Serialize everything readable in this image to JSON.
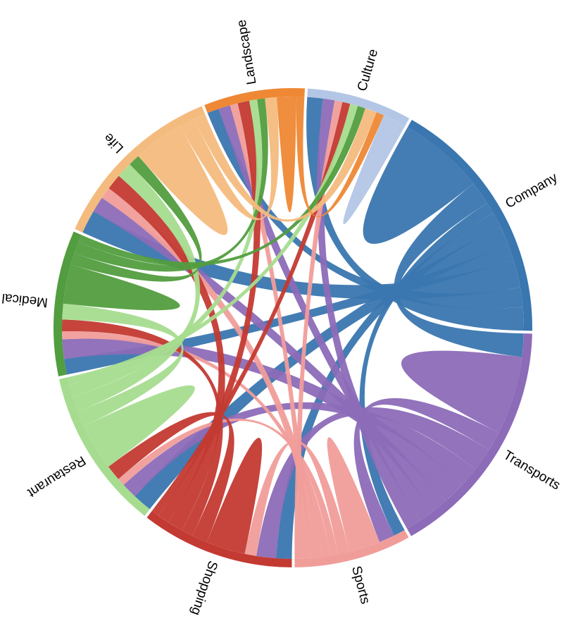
{
  "chart_data": {
    "type": "chord",
    "groups": [
      "Company",
      "Transports",
      "Sports",
      "Shopping",
      "Restaurant",
      "Medical",
      "Life",
      "Landscape",
      "Culture"
    ],
    "colors": [
      "#3a76af",
      "#8c6bb8",
      "#f09d9a",
      "#c33a32",
      "#a6dc8f",
      "#529d3f",
      "#f4bb7e",
      "#ee8834",
      "#b3c6e5"
    ],
    "matrix": [
      [
        22,
        6,
        3,
        4,
        5,
        4,
        7,
        5,
        6
      ],
      [
        6,
        20,
        5,
        6,
        5,
        6,
        4,
        4,
        4
      ],
      [
        3,
        4,
        8,
        3,
        2,
        2,
        3,
        2,
        2
      ],
      [
        4,
        5,
        3,
        10,
        4,
        3,
        4,
        3,
        2
      ],
      [
        5,
        4,
        2,
        4,
        12,
        4,
        4,
        3,
        2
      ],
      [
        4,
        5,
        2,
        3,
        4,
        10,
        3,
        3,
        2
      ],
      [
        6,
        4,
        3,
        4,
        4,
        3,
        13,
        4,
        3
      ],
      [
        3,
        3,
        2,
        3,
        2,
        2,
        3,
        5,
        2
      ],
      [
        4,
        3,
        2,
        2,
        2,
        2,
        3,
        2,
        6
      ]
    ]
  }
}
